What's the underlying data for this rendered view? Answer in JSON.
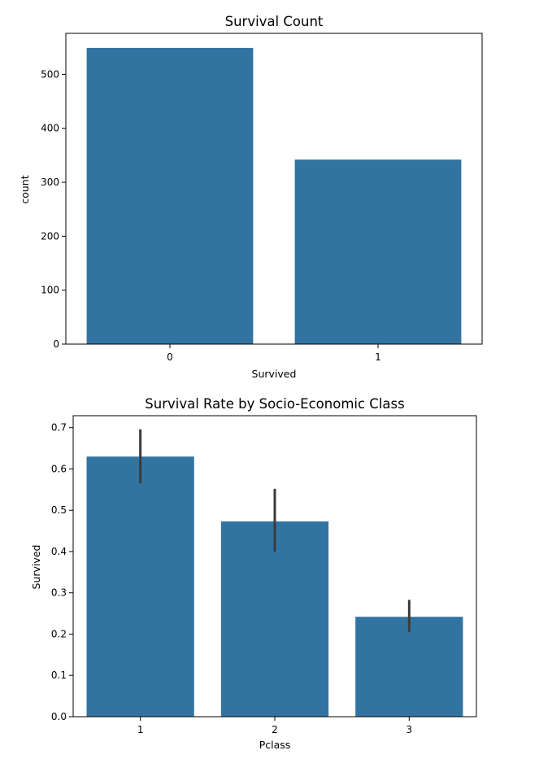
{
  "chart_data": [
    {
      "type": "bar",
      "title": "Survival Count",
      "xlabel": "Survived",
      "ylabel": "count",
      "categories": [
        "0",
        "1"
      ],
      "values": [
        549,
        342
      ],
      "ylim": [
        0,
        576
      ],
      "yticks": [
        0,
        100,
        200,
        300,
        400,
        500
      ],
      "grid": false,
      "bar_color": "#3274a1"
    },
    {
      "type": "bar",
      "title": "Survival Rate by Socio-Economic Class",
      "xlabel": "Pclass",
      "ylabel": "Survived",
      "categories": [
        "1",
        "2",
        "3"
      ],
      "values": [
        0.63,
        0.473,
        0.242
      ],
      "error_bars": [
        [
          0.565,
          0.696
        ],
        [
          0.4,
          0.552
        ],
        [
          0.205,
          0.283
        ]
      ],
      "ylim": [
        0,
        0.729
      ],
      "yticks": [
        "0.0",
        "0.1",
        "0.2",
        "0.3",
        "0.4",
        "0.5",
        "0.6",
        "0.7"
      ],
      "grid": false,
      "bar_color": "#3274a1",
      "error_color": "#3b3b3b"
    }
  ]
}
